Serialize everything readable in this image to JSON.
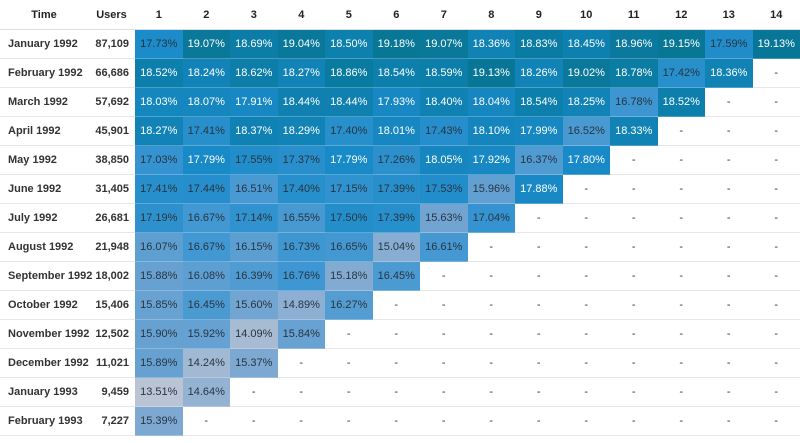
{
  "table": {
    "header": [
      "Time",
      "Users",
      "1",
      "2",
      "3",
      "4",
      "5",
      "6",
      "7",
      "8",
      "9",
      "10",
      "11",
      "12",
      "13",
      "14"
    ],
    "rows": [
      {
        "time": "January 1992",
        "users": "87,109",
        "cells": [
          "17.73%",
          "19.07%",
          "18.69%",
          "19.04%",
          "18.50%",
          "19.18%",
          "19.07%",
          "18.36%",
          "18.83%",
          "18.45%",
          "18.96%",
          "19.15%",
          "17.59%",
          "19.13%"
        ]
      },
      {
        "time": "February 1992",
        "users": "66,686",
        "cells": [
          "18.52%",
          "18.24%",
          "18.62%",
          "18.27%",
          "18.86%",
          "18.54%",
          "18.59%",
          "19.13%",
          "18.26%",
          "19.02%",
          "18.78%",
          "17.42%",
          "18.36%",
          "-"
        ]
      },
      {
        "time": "March 1992",
        "users": "57,692",
        "cells": [
          "18.03%",
          "18.07%",
          "17.91%",
          "18.44%",
          "18.44%",
          "17.93%",
          "18.40%",
          "18.04%",
          "18.54%",
          "18.25%",
          "16.78%",
          "18.52%",
          "-",
          "-"
        ]
      },
      {
        "time": "April 1992",
        "users": "45,901",
        "cells": [
          "18.27%",
          "17.41%",
          "18.37%",
          "18.29%",
          "17.40%",
          "18.01%",
          "17.43%",
          "18.10%",
          "17.99%",
          "16.52%",
          "18.33%",
          "-",
          "-",
          "-"
        ]
      },
      {
        "time": "May 1992",
        "users": "38,850",
        "cells": [
          "17.03%",
          "17.79%",
          "17.55%",
          "17.37%",
          "17.79%",
          "17.26%",
          "18.05%",
          "17.92%",
          "16.37%",
          "17.80%",
          "-",
          "-",
          "-",
          "-"
        ]
      },
      {
        "time": "June 1992",
        "users": "31,405",
        "cells": [
          "17.41%",
          "17.44%",
          "16.51%",
          "17.40%",
          "17.15%",
          "17.39%",
          "17.53%",
          "15.96%",
          "17.88%",
          "-",
          "-",
          "-",
          "-",
          "-"
        ]
      },
      {
        "time": "July 1992",
        "users": "26,681",
        "cells": [
          "17.19%",
          "16.67%",
          "17.14%",
          "16.55%",
          "17.50%",
          "17.39%",
          "15.63%",
          "17.04%",
          "-",
          "-",
          "-",
          "-",
          "-",
          "-"
        ]
      },
      {
        "time": "August 1992",
        "users": "21,948",
        "cells": [
          "16.07%",
          "16.67%",
          "16.15%",
          "16.73%",
          "16.65%",
          "15.04%",
          "16.61%",
          "-",
          "-",
          "-",
          "-",
          "-",
          "-",
          "-"
        ]
      },
      {
        "time": "September 1992",
        "users": "18,002",
        "cells": [
          "15.88%",
          "16.08%",
          "16.39%",
          "16.76%",
          "15.18%",
          "16.45%",
          "-",
          "-",
          "-",
          "-",
          "-",
          "-",
          "-",
          "-"
        ]
      },
      {
        "time": "October 1992",
        "users": "15,406",
        "cells": [
          "15.85%",
          "16.45%",
          "15.60%",
          "14.89%",
          "16.27%",
          "-",
          "-",
          "-",
          "-",
          "-",
          "-",
          "-",
          "-",
          "-"
        ]
      },
      {
        "time": "November 1992",
        "users": "12,502",
        "cells": [
          "15.90%",
          "15.92%",
          "14.09%",
          "15.84%",
          "-",
          "-",
          "-",
          "-",
          "-",
          "-",
          "-",
          "-",
          "-",
          "-"
        ]
      },
      {
        "time": "December 1992",
        "users": "11,021",
        "cells": [
          "15.89%",
          "14.24%",
          "15.37%",
          "-",
          "-",
          "-",
          "-",
          "-",
          "-",
          "-",
          "-",
          "-",
          "-",
          "-"
        ]
      },
      {
        "time": "January 1993",
        "users": "9,459",
        "cells": [
          "13.51%",
          "14.64%",
          "-",
          "-",
          "-",
          "-",
          "-",
          "-",
          "-",
          "-",
          "-",
          "-",
          "-",
          "-"
        ]
      },
      {
        "time": "February 1993",
        "users": "7,227",
        "cells": [
          "15.39%",
          "-",
          "-",
          "-",
          "-",
          "-",
          "-",
          "-",
          "-",
          "-",
          "-",
          "-",
          "-",
          "-"
        ]
      }
    ]
  }
}
